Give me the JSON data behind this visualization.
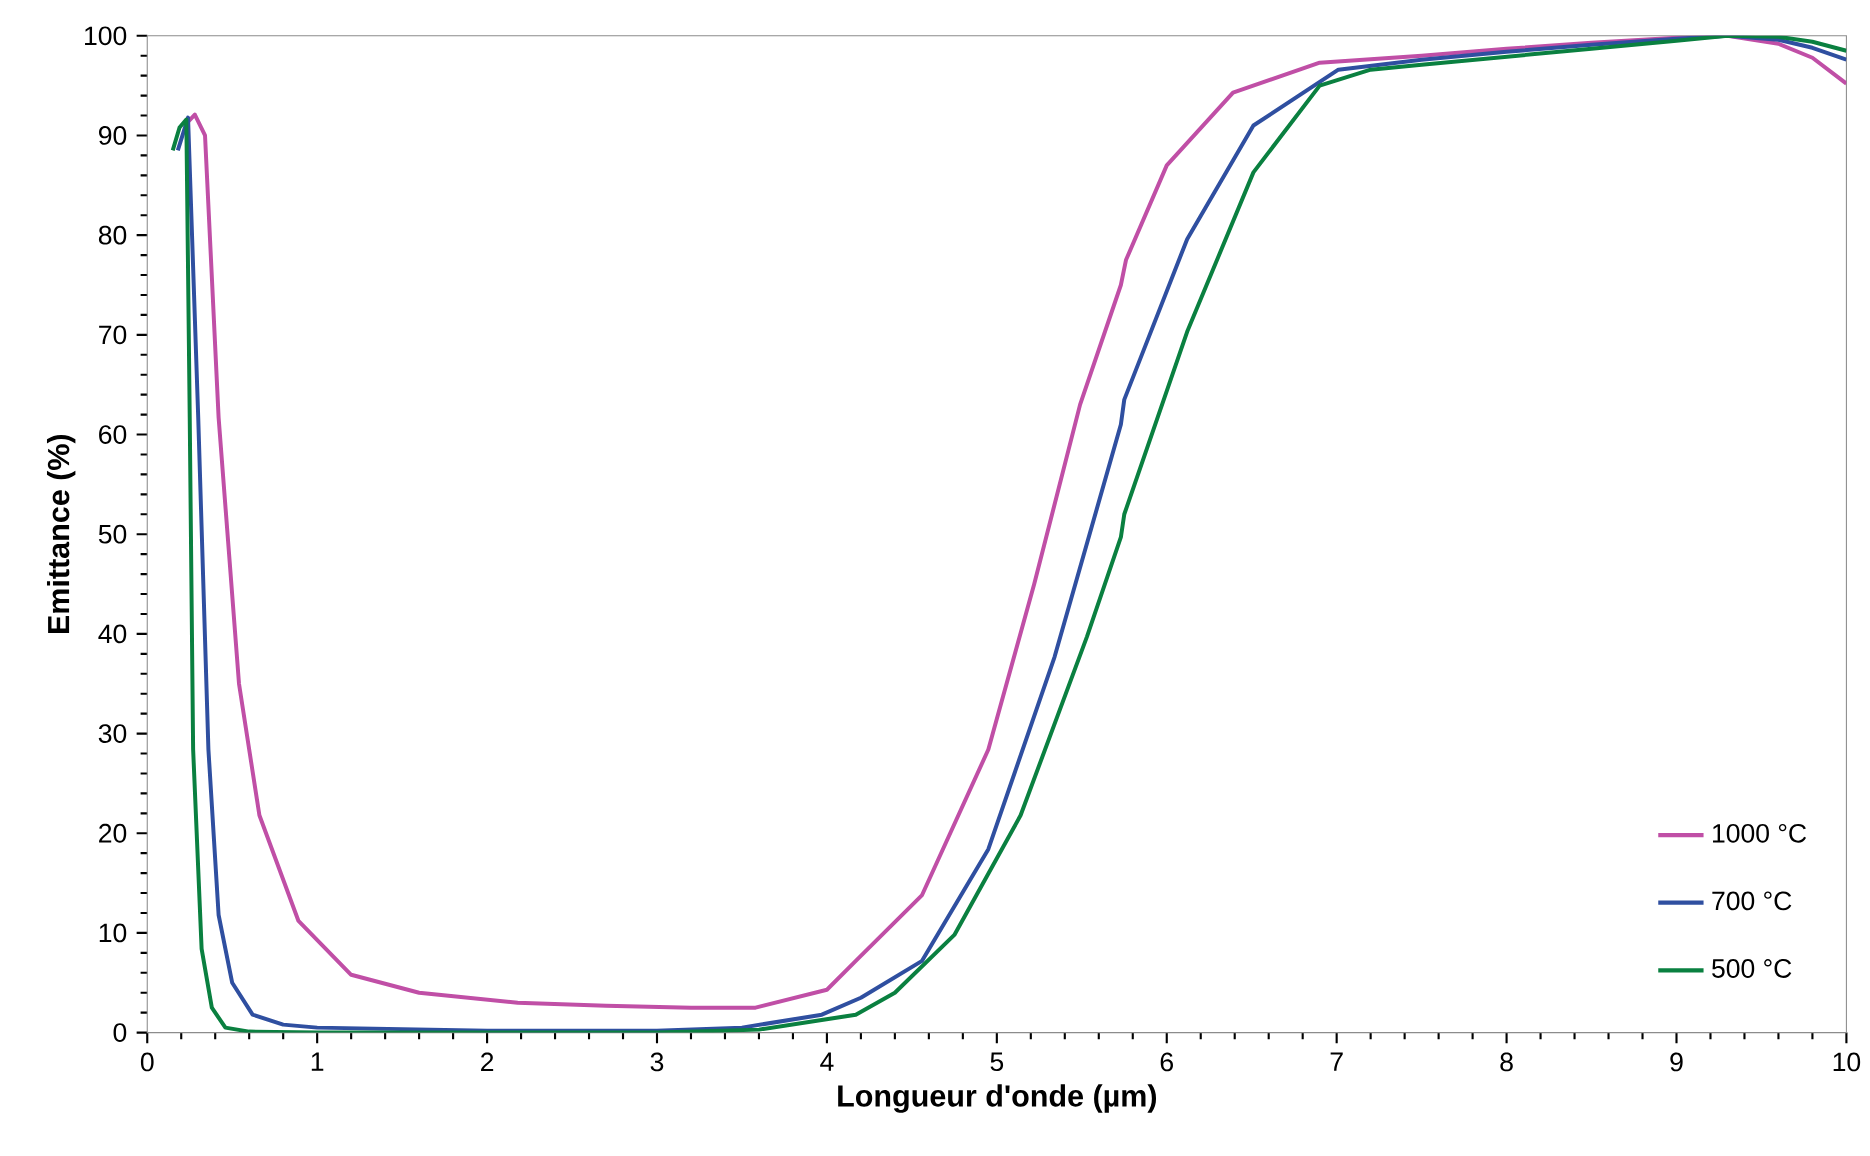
{
  "chart_data": {
    "type": "line",
    "xlabel": "Longueur d'onde (µm)",
    "ylabel": "Emittance (%)",
    "xlim": [
      0,
      10
    ],
    "xticks": [
      0,
      1,
      2,
      3,
      4,
      5,
      6,
      7,
      8,
      9,
      10
    ],
    "ylim": [
      0,
      100
    ],
    "yticks": [
      0,
      10,
      20,
      30,
      40,
      50,
      60,
      70,
      80,
      90,
      100
    ],
    "grid": false,
    "legend": "bottom right",
    "marker": "none",
    "line_style": "solid",
    "series": [
      {
        "name": "1000 °C",
        "color": "#c04fa6",
        "x": [
          0.22,
          0.28,
          0.34,
          0.42,
          0.54,
          0.66,
          0.89,
          1.2,
          1.6,
          2.18,
          2.7,
          3.2,
          3.58,
          4.0,
          4.17,
          4.56,
          4.95,
          5.22,
          5.49,
          5.73,
          5.76,
          6.0,
          6.39,
          6.9,
          7.5,
          8.0,
          8.5,
          9.0,
          9.3,
          9.6,
          9.8,
          10.0
        ],
        "values": [
          91.0,
          92.1,
          90.0,
          61.7,
          35.0,
          21.8,
          11.2,
          5.8,
          4.0,
          3.0,
          2.7,
          2.5,
          2.5,
          4.3,
          7.2,
          13.8,
          28.4,
          45.0,
          63.0,
          75.0,
          77.5,
          87.0,
          94.3,
          97.3,
          98.0,
          98.7,
          99.3,
          99.8,
          100.0,
          99.2,
          97.8,
          95.2
        ]
      },
      {
        "name": "700 °C",
        "color": "#2f4fa0",
        "x": [
          0.18,
          0.24,
          0.3,
          0.36,
          0.42,
          0.5,
          0.62,
          0.8,
          1.0,
          2.0,
          3.0,
          3.5,
          3.97,
          4.2,
          4.56,
          4.95,
          5.34,
          5.73,
          5.75,
          6.12,
          6.51,
          7.01,
          7.5,
          8.0,
          8.5,
          9.0,
          9.3,
          9.6,
          9.8,
          10.0
        ],
        "values": [
          88.5,
          91.8,
          61.7,
          28.4,
          11.8,
          5.0,
          1.8,
          0.8,
          0.5,
          0.2,
          0.2,
          0.5,
          1.8,
          3.5,
          7.2,
          18.4,
          37.7,
          61.0,
          63.5,
          79.6,
          91.0,
          96.6,
          97.6,
          98.4,
          99.1,
          99.7,
          100.0,
          99.6,
          98.8,
          97.6
        ]
      },
      {
        "name": "500 °C",
        "color": "#0a8040",
        "x": [
          0.15,
          0.19,
          0.23,
          0.25,
          0.27,
          0.32,
          0.38,
          0.46,
          0.6,
          1.0,
          2.0,
          3.0,
          3.6,
          4.17,
          4.4,
          4.75,
          5.14,
          5.53,
          5.73,
          5.75,
          6.12,
          6.51,
          6.9,
          7.2,
          7.5,
          8.0,
          8.5,
          9.0,
          9.3,
          9.6,
          9.8,
          10.0
        ],
        "values": [
          88.5,
          90.8,
          91.6,
          61.7,
          28.4,
          8.4,
          2.5,
          0.5,
          0.1,
          0.0,
          0.0,
          0.0,
          0.3,
          1.8,
          4.0,
          9.8,
          21.8,
          39.7,
          49.7,
          52.0,
          70.3,
          86.3,
          95.0,
          96.6,
          97.1,
          97.9,
          98.7,
          99.5,
          100.0,
          99.9,
          99.4,
          98.5
        ]
      }
    ]
  }
}
